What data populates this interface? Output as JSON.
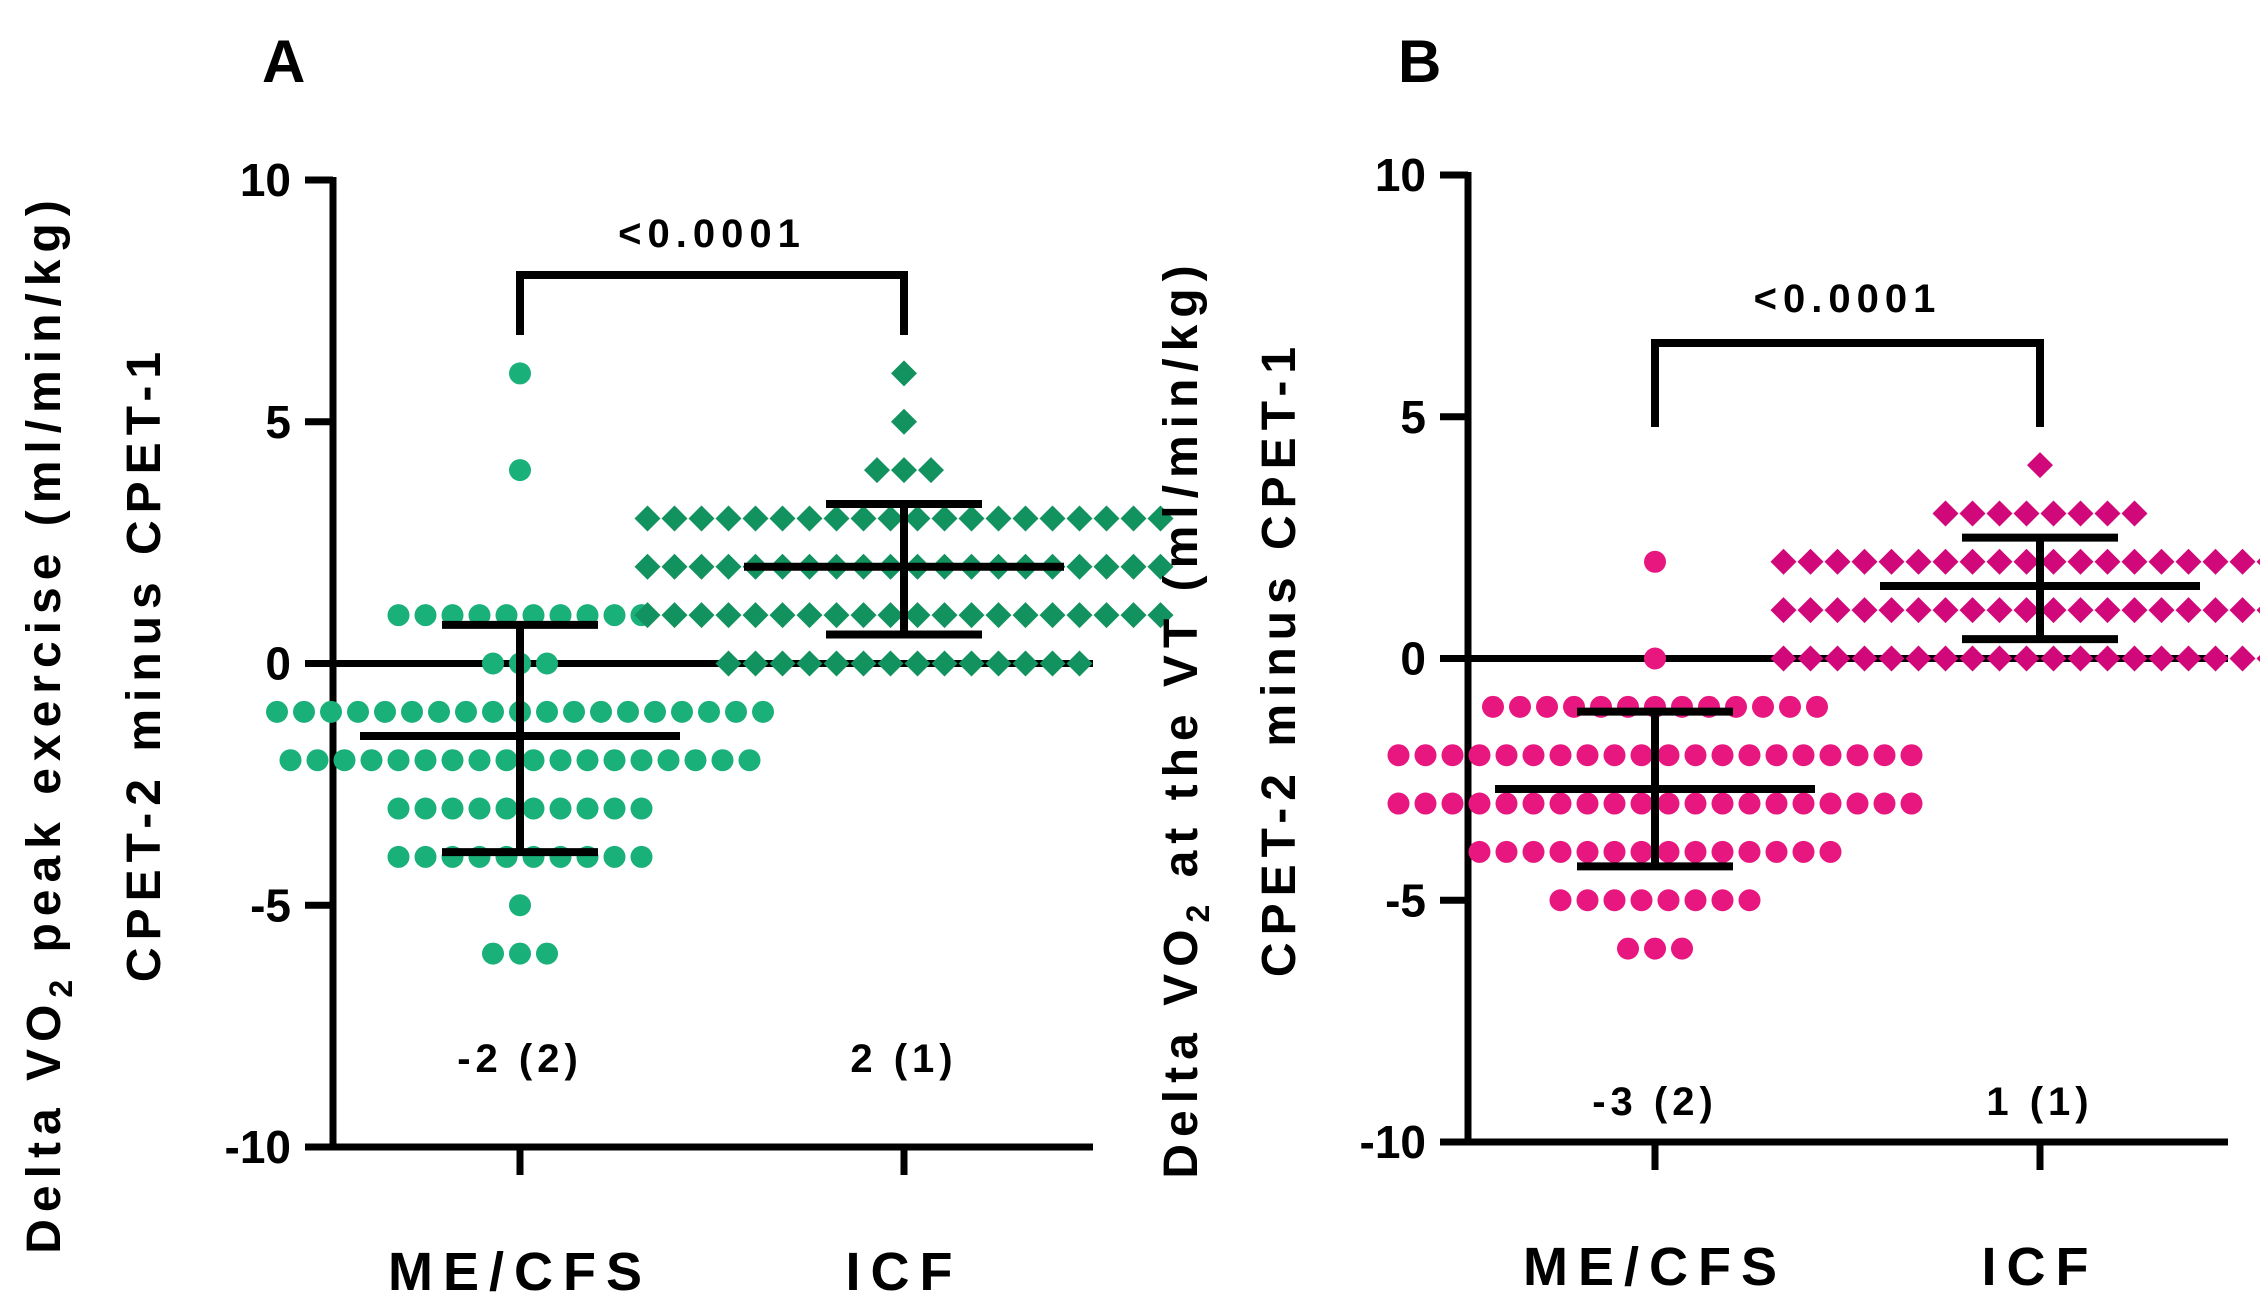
{
  "chart_data": [
    {
      "type": "scatter",
      "panel_label": "A",
      "ylabel_line1": "Delta VO",
      "ylabel_sub": "2",
      "ylabel_line1_rest": " peak exercise (ml/min/kg)",
      "ylabel_line2": "CPET-2 minus CPET-1",
      "ylim": [
        -10,
        10
      ],
      "yticks": [
        "10",
        "5",
        "0",
        "-5",
        "-10"
      ],
      "ytick_values": [
        10,
        5,
        0,
        -5,
        -10
      ],
      "categories": [
        "ME/CFS",
        "ICF"
      ],
      "zero_line": true,
      "significance": "<0.0001",
      "summaries": [
        "-2 (2)",
        "2 (1)"
      ],
      "series": [
        {
          "name": "ME/CFS",
          "marker": "circle",
          "color": "#1ab07a",
          "mean": -1.5,
          "sd_low": -3.9,
          "sd_high": 0.8,
          "values": [
            6,
            4,
            1,
            1,
            1,
            1,
            1,
            1,
            1,
            1,
            1,
            1,
            0,
            0,
            0,
            -1,
            -1,
            -1,
            -1,
            -1,
            -1,
            -1,
            -1,
            -1,
            -1,
            -1,
            -1,
            -1,
            -1,
            -1,
            -1,
            -1,
            -1,
            -1,
            -2,
            -2,
            -2,
            -2,
            -2,
            -2,
            -2,
            -2,
            -2,
            -2,
            -2,
            -2,
            -2,
            -2,
            -2,
            -2,
            -2,
            -2,
            -3,
            -3,
            -3,
            -3,
            -3,
            -3,
            -3,
            -3,
            -3,
            -3,
            -4,
            -4,
            -4,
            -4,
            -4,
            -4,
            -4,
            -4,
            -4,
            -4,
            -5,
            -6,
            -6,
            -6
          ]
        },
        {
          "name": "ICF",
          "marker": "diamond",
          "color": "#12925f",
          "mean": 2.0,
          "sd_low": 0.6,
          "sd_high": 3.3,
          "values": [
            6,
            5,
            4,
            4,
            4,
            3,
            3,
            3,
            3,
            3,
            3,
            3,
            3,
            3,
            3,
            3,
            3,
            3,
            3,
            3,
            3,
            3,
            3,
            3,
            3,
            2,
            2,
            2,
            2,
            2,
            2,
            2,
            2,
            2,
            2,
            2,
            2,
            2,
            2,
            2,
            2,
            2,
            2,
            2,
            2,
            1,
            1,
            1,
            1,
            1,
            1,
            1,
            1,
            1,
            1,
            1,
            1,
            1,
            1,
            1,
            1,
            1,
            1,
            1,
            1,
            0,
            0,
            0,
            0,
            0,
            0,
            0,
            0,
            0,
            0,
            0,
            0,
            0,
            0
          ]
        }
      ]
    },
    {
      "type": "scatter",
      "panel_label": "B",
      "ylabel_line1": "Delta VO",
      "ylabel_sub": "2",
      "ylabel_line1_rest": " at the VT (ml/min/kg)",
      "ylabel_line2": "CPET-2 minus CPET-1",
      "ylim": [
        -10,
        10
      ],
      "yticks": [
        "10",
        "5",
        "0",
        "-5",
        "-10"
      ],
      "ytick_values": [
        10,
        5,
        0,
        -5,
        -10
      ],
      "categories": [
        "ME/CFS",
        "ICF"
      ],
      "zero_line": true,
      "significance": "<0.0001",
      "summaries": [
        "-3 (2)",
        "1 (1)"
      ],
      "series": [
        {
          "name": "ME/CFS",
          "marker": "circle",
          "color": "#e8177f",
          "mean": -2.7,
          "sd_low": -4.3,
          "sd_high": -1.1,
          "values": [
            2,
            0,
            -1,
            -1,
            -1,
            -1,
            -1,
            -1,
            -1,
            -1,
            -1,
            -1,
            -1,
            -1,
            -1,
            -2,
            -2,
            -2,
            -2,
            -2,
            -2,
            -2,
            -2,
            -2,
            -2,
            -2,
            -2,
            -2,
            -2,
            -2,
            -2,
            -2,
            -2,
            -2,
            -2,
            -3,
            -3,
            -3,
            -3,
            -3,
            -3,
            -3,
            -3,
            -3,
            -3,
            -3,
            -3,
            -3,
            -3,
            -3,
            -3,
            -3,
            -3,
            -3,
            -3,
            -4,
            -4,
            -4,
            -4,
            -4,
            -4,
            -4,
            -4,
            -4,
            -4,
            -4,
            -4,
            -4,
            -4,
            -5,
            -5,
            -5,
            -5,
            -5,
            -5,
            -5,
            -5,
            -6,
            -6,
            -6
          ]
        },
        {
          "name": "ICF",
          "marker": "diamond",
          "color": "#d0087a",
          "mean": 1.5,
          "sd_low": 0.4,
          "sd_high": 2.5,
          "values": [
            4,
            3,
            3,
            3,
            3,
            3,
            3,
            3,
            3,
            2,
            2,
            2,
            2,
            2,
            2,
            2,
            2,
            2,
            2,
            2,
            2,
            2,
            2,
            2,
            2,
            2,
            2,
            2,
            2,
            1,
            1,
            1,
            1,
            1,
            1,
            1,
            1,
            1,
            1,
            1,
            1,
            1,
            1,
            1,
            1,
            1,
            1,
            1,
            1,
            0,
            0,
            0,
            0,
            0,
            0,
            0,
            0,
            0,
            0,
            0,
            0,
            0,
            0,
            0,
            0,
            0,
            0,
            0,
            0
          ]
        }
      ]
    }
  ]
}
